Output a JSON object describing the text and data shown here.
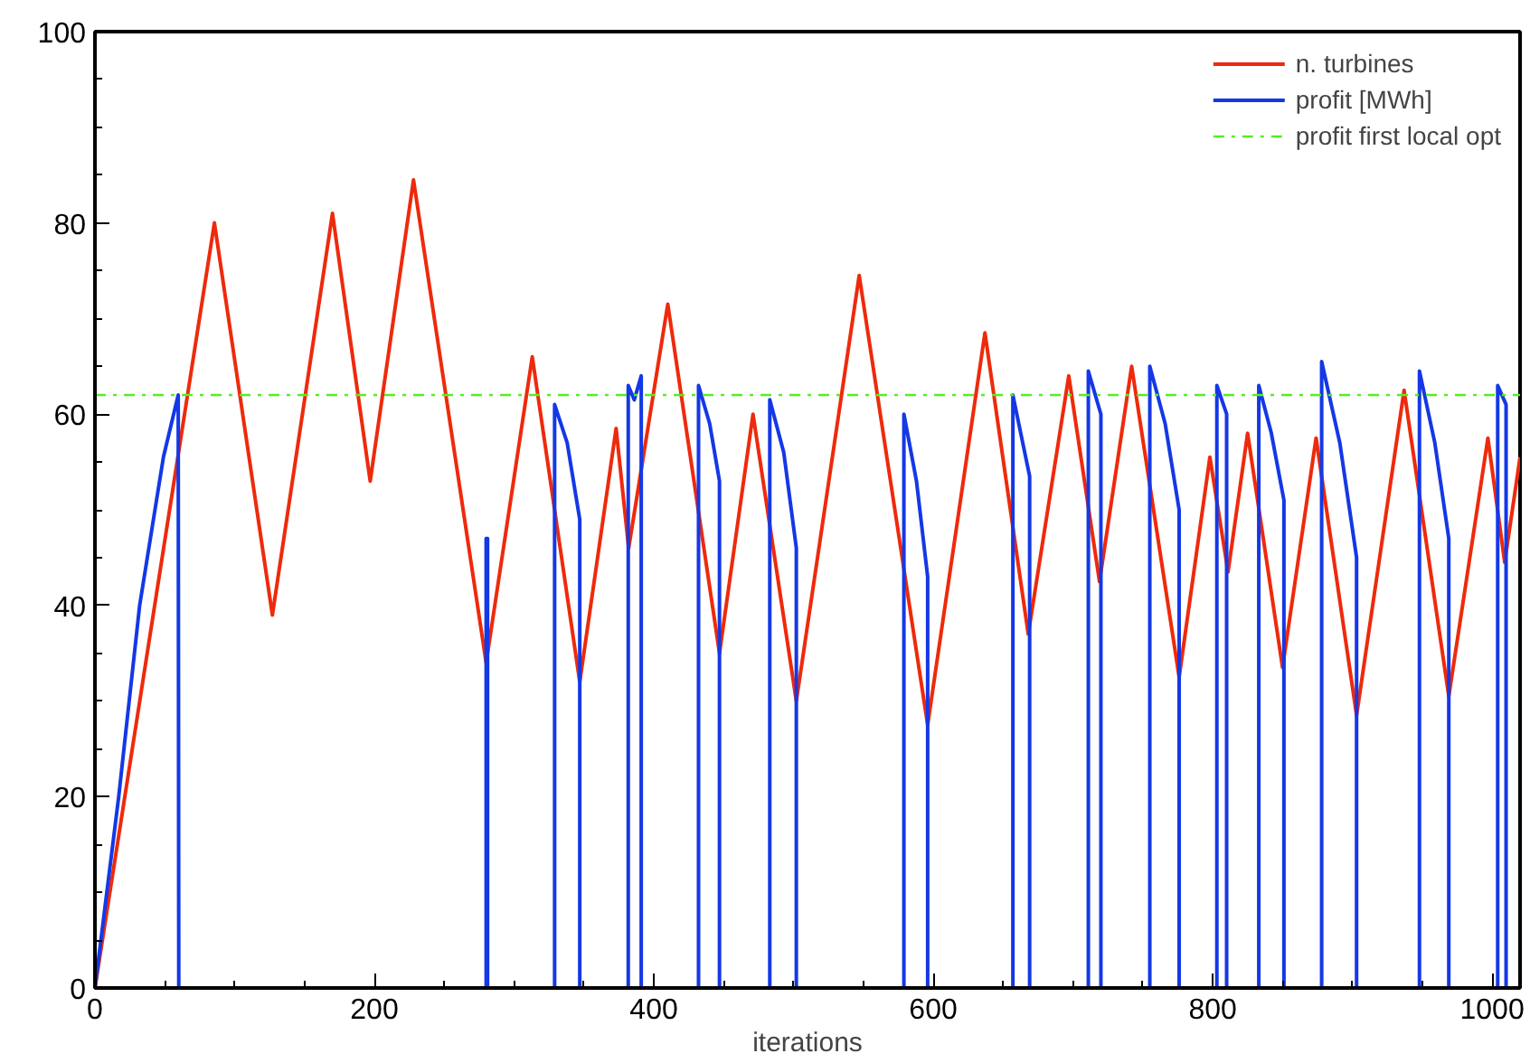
{
  "chart_data": {
    "type": "line",
    "xlabel": "iterations",
    "xlim": [
      0,
      1020
    ],
    "ylim": [
      0,
      100
    ],
    "xticks": [
      0,
      200,
      400,
      600,
      800,
      1000
    ],
    "yticks": [
      0,
      20,
      40,
      60,
      80,
      100
    ],
    "grid": false,
    "legend": "top right",
    "line_style": "solid",
    "series": [
      {
        "name": "n. turbines",
        "color": "#ee2a0c",
        "x": [
          0,
          85.5,
          127,
          170,
          197,
          228,
          280,
          313,
          347,
          373,
          382,
          410,
          447,
          471,
          502,
          547,
          596,
          637,
          668,
          697,
          719,
          742,
          776,
          798,
          811,
          825,
          850,
          874,
          903,
          937,
          969,
          997,
          1009,
          1020
        ],
        "values": [
          0,
          80,
          39,
          81,
          53,
          84.5,
          34,
          66,
          32,
          58.5,
          46,
          71.5,
          35,
          60,
          30,
          74.5,
          27.5,
          68.5,
          37,
          64,
          42.5,
          65,
          32.5,
          55.5,
          43.5,
          58,
          33.5,
          57.5,
          28.5,
          62.5,
          30.5,
          57.5,
          44.5,
          55.5
        ]
      },
      {
        "name": "profit [MWh]",
        "color": "#1438e6",
        "x": [
          0,
          17,
          32,
          49,
          59.6,
          60,
          280,
          280,
          281,
          281,
          329,
          329,
          338,
          347,
          347,
          381.7,
          381.7,
          386,
          391,
          391,
          432,
          432,
          440,
          447,
          447,
          483,
          483,
          493,
          502,
          502,
          579,
          579,
          588,
          596,
          596,
          657,
          657,
          669,
          669,
          711,
          711,
          720,
          720,
          755,
          755,
          766,
          776,
          776,
          803,
          803,
          810,
          810,
          833,
          833,
          842,
          851,
          851,
          878,
          878,
          891,
          903,
          903,
          948,
          948,
          959,
          969,
          969,
          1004,
          1004,
          1010,
          1010,
          1020
        ],
        "values": [
          0,
          20,
          40,
          55.5,
          62,
          0,
          0,
          47,
          47,
          0,
          0,
          61,
          57,
          49,
          0,
          0,
          63,
          61.5,
          64,
          0,
          0,
          63,
          59,
          53,
          0,
          0,
          61.5,
          56,
          46,
          0,
          0,
          60,
          53,
          43,
          0,
          0,
          62,
          53.5,
          0,
          0,
          64.5,
          60,
          0,
          0,
          65,
          59,
          50,
          0,
          0,
          63,
          60,
          0,
          0,
          63,
          58,
          51,
          0,
          0,
          65.5,
          57,
          45,
          0,
          0,
          64.5,
          57,
          47,
          0,
          0,
          63,
          61,
          0,
          0
        ]
      },
      {
        "name": "profit first local opt",
        "color": "#55ee22",
        "line_style": "dashdot",
        "x": [
          0,
          1020
        ],
        "values": [
          62,
          62
        ]
      }
    ]
  }
}
